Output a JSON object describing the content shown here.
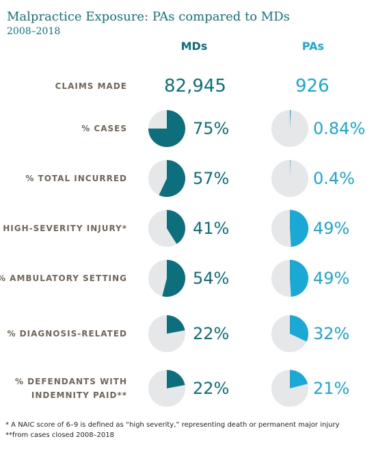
{
  "title": "Malpractice Exposure: PAs compared to MDs",
  "subtitle": "2008–2018",
  "columns": {
    "md": "MDs",
    "pa": "PAs"
  },
  "colors": {
    "md": "#0d6f7c",
    "pa": "#1aa9d4",
    "pie_bg": "#e6e7e8",
    "label": "#6f6558"
  },
  "rows": [
    {
      "label": "CLAIMS MADE",
      "md_text": "82,945",
      "pa_text": "926"
    },
    {
      "label": "% CASES",
      "md_text": "75%",
      "pa_text": "0.84%"
    },
    {
      "label": "% TOTAL INCURRED",
      "md_text": "57%",
      "pa_text": "0.4%"
    },
    {
      "label": "% HIGH-SEVERITY INJURY*",
      "md_text": "41%",
      "pa_text": "49%"
    },
    {
      "label": "% AMBULATORY SETTING",
      "md_text": "54%",
      "pa_text": "49%"
    },
    {
      "label": "% DIAGNOSIS-RELATED",
      "md_text": "22%",
      "pa_text": "32%"
    },
    {
      "label": "% DEFENDANTS WITH\nINDEMNITY PAID**",
      "md_text": "22%",
      "pa_text": "21%"
    }
  ],
  "chart_data": {
    "type": "pie",
    "categories": [
      "% CASES",
      "% TOTAL INCURRED",
      "% HIGH-SEVERITY INJURY*",
      "% AMBULATORY SETTING",
      "% DIAGNOSIS-RELATED",
      "% DEFENDANTS WITH INDEMNITY PAID**"
    ],
    "series": [
      {
        "name": "MDs",
        "values": [
          75,
          57,
          41,
          54,
          22,
          22
        ]
      },
      {
        "name": "PAs",
        "values": [
          0.84,
          0.4,
          49,
          49,
          32,
          21
        ]
      }
    ],
    "claims_made": {
      "MDs": 82945,
      "PAs": 926
    }
  },
  "footnotes": [
    "* A NAIC score of 6–9 is defined as “high severity,” representing death or permanent major injury",
    "**from cases closed 2008–2018"
  ]
}
